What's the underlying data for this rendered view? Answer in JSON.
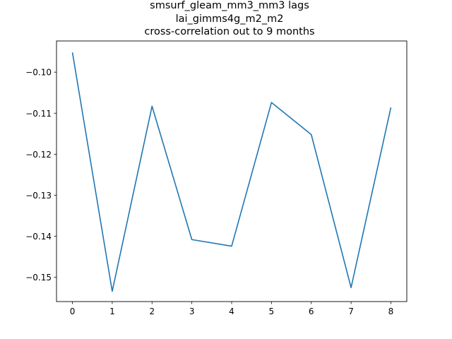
{
  "chart_data": {
    "type": "line",
    "title": [
      "smsurf_gleam_mm3_mm3 lags",
      "lai_gimms4g_m2_m2",
      "cross-correlation out to 9 months"
    ],
    "xlabel": "",
    "ylabel": "",
    "x": [
      0,
      1,
      2,
      3,
      4,
      5,
      6,
      7,
      8
    ],
    "series": [
      {
        "values": [
          -0.0952,
          -0.1534,
          -0.1083,
          -0.1408,
          -0.1424,
          -0.1074,
          -0.1152,
          -0.1525,
          -0.1086
        ],
        "color": "#1f77b4"
      }
    ],
    "xlim": [
      -0.4,
      8.4
    ],
    "ylim": [
      -0.1559,
      -0.0924
    ],
    "xticks": [
      0,
      1,
      2,
      3,
      4,
      5,
      6,
      7,
      8
    ],
    "yticks": [
      -0.1,
      -0.11,
      -0.12,
      -0.13,
      -0.14,
      -0.15
    ],
    "ytick_labels": [
      "−0.10",
      "−0.11",
      "−0.12",
      "−0.13",
      "−0.14",
      "−0.15"
    ],
    "grid": false,
    "legend": "none"
  }
}
